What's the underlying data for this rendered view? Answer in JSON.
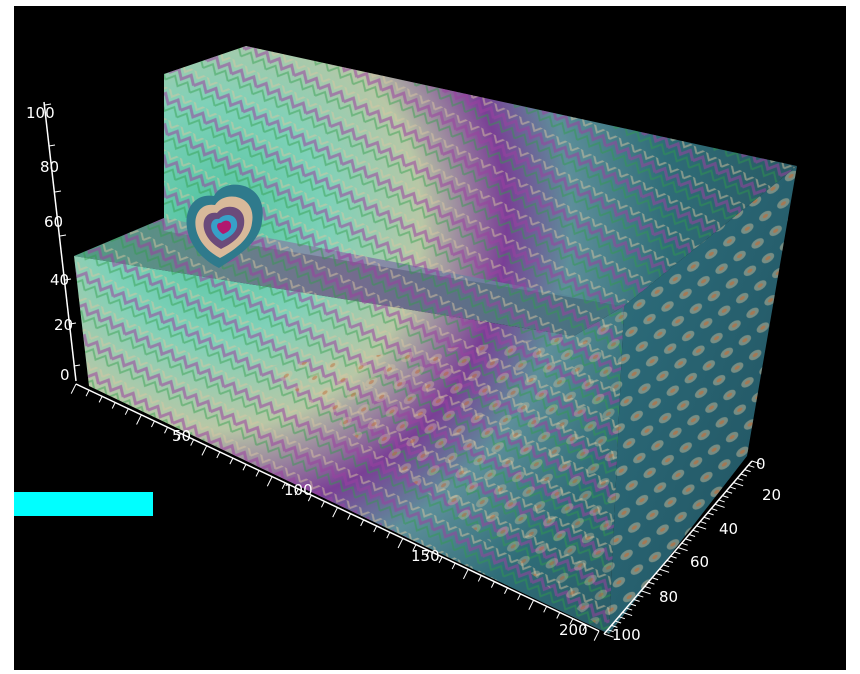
{
  "viewer": {
    "background": "#000000",
    "frame_color": "#ffffff",
    "indicator_color": "#00ffff"
  },
  "axes": {
    "z": {
      "ticks": [
        "0",
        "20",
        "40",
        "60",
        "80",
        "100"
      ]
    },
    "x": {
      "ticks": [
        "50",
        "100",
        "150",
        "200"
      ]
    },
    "y": {
      "ticks": [
        "0",
        "20",
        "40",
        "60",
        "80",
        "100"
      ]
    }
  },
  "volume": {
    "palette": [
      "#3fae97",
      "#78cdb5",
      "#d9c6a1",
      "#2d7db4",
      "#8a2a95",
      "#2f9e49",
      "#c26b36",
      "#2a6a74"
    ]
  }
}
